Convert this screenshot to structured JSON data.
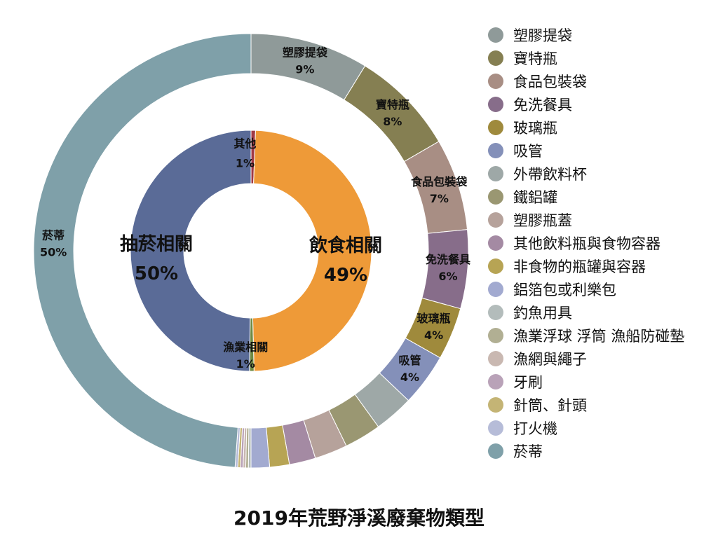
{
  "chart_data": {
    "type": "pie",
    "title": "2019年荒野淨溪廢棄物類型",
    "outer_ring": [
      {
        "name": "塑膠提袋",
        "value": 9,
        "label": "9%",
        "color": "#8f9a99"
      },
      {
        "name": "寶特瓶",
        "value": 8,
        "label": "8%",
        "color": "#857f52"
      },
      {
        "name": "食品包裝袋",
        "value": 7,
        "label": "7%",
        "color": "#a88e84"
      },
      {
        "name": "免洗餐具",
        "value": 6,
        "label": "6%",
        "color": "#876d8a"
      },
      {
        "name": "玻璃瓶",
        "value": 4,
        "label": "4%",
        "color": "#9f8a3c"
      },
      {
        "name": "吸管",
        "value": 4,
        "label": "4%",
        "color": "#8490b9"
      },
      {
        "name": "外帶飲料杯",
        "value": 3,
        "color": "#9ea8a7"
      },
      {
        "name": "鐵鋁罐",
        "value": 2.8,
        "color": "#9a9772"
      },
      {
        "name": "塑膠瓶蓋",
        "value": 2.5,
        "color": "#b6a29b"
      },
      {
        "name": "其他飲料瓶與食物容器",
        "value": 2,
        "color": "#a48aa3"
      },
      {
        "name": "非食物的瓶罐與容器",
        "value": 1.5,
        "color": "#b7a454"
      },
      {
        "name": "鋁箔包或利樂包",
        "value": 1.4,
        "color": "#a2aad0"
      },
      {
        "name": "釣魚用具",
        "value": 0.2,
        "color": "#b3bcbb"
      },
      {
        "name": "漁業浮球 浮筒 漁船防碰墊",
        "value": 0.2,
        "color": "#b1af93"
      },
      {
        "name": "漁網與繩子",
        "value": 0.2,
        "color": "#c9b8b1"
      },
      {
        "name": "牙刷",
        "value": 0.2,
        "color": "#b9a2b8"
      },
      {
        "name": "針筒、針頭",
        "value": 0.2,
        "color": "#c4b475"
      },
      {
        "name": "打火機",
        "value": 0.2,
        "color": "#b6bcd8"
      },
      {
        "name": "菸蒂",
        "value": 50,
        "label": "50%",
        "color": "#7fa0a9"
      }
    ],
    "inner_ring": [
      {
        "name": "其他",
        "value": 0.6,
        "label": "1%",
        "color": "#a03a45"
      },
      {
        "name": "飲食相關",
        "value": 49,
        "label": "49%",
        "color": "#ee9a38"
      },
      {
        "name": "漁業相關",
        "value": 0.6,
        "label": "1%",
        "color": "#6f8a44"
      },
      {
        "name": "抽菸相關",
        "value": 49.8,
        "label": "50%",
        "color": "#5a6b97"
      }
    ],
    "legend": [
      "塑膠提袋",
      "寶特瓶",
      "食品包裝袋",
      "免洗餐具",
      "玻璃瓶",
      "吸管",
      "外帶飲料杯",
      "鐵鋁罐",
      "塑膠瓶蓋",
      "其他飲料瓶與食物容器",
      "非食物的瓶罐與容器",
      "鋁箔包或利樂包",
      "釣魚用具",
      "漁業浮球 浮筒 漁船防碰墊",
      "漁網與繩子",
      "牙刷",
      "針筒、針頭",
      "打火機",
      "菸蒂"
    ],
    "legend_position": "right"
  }
}
